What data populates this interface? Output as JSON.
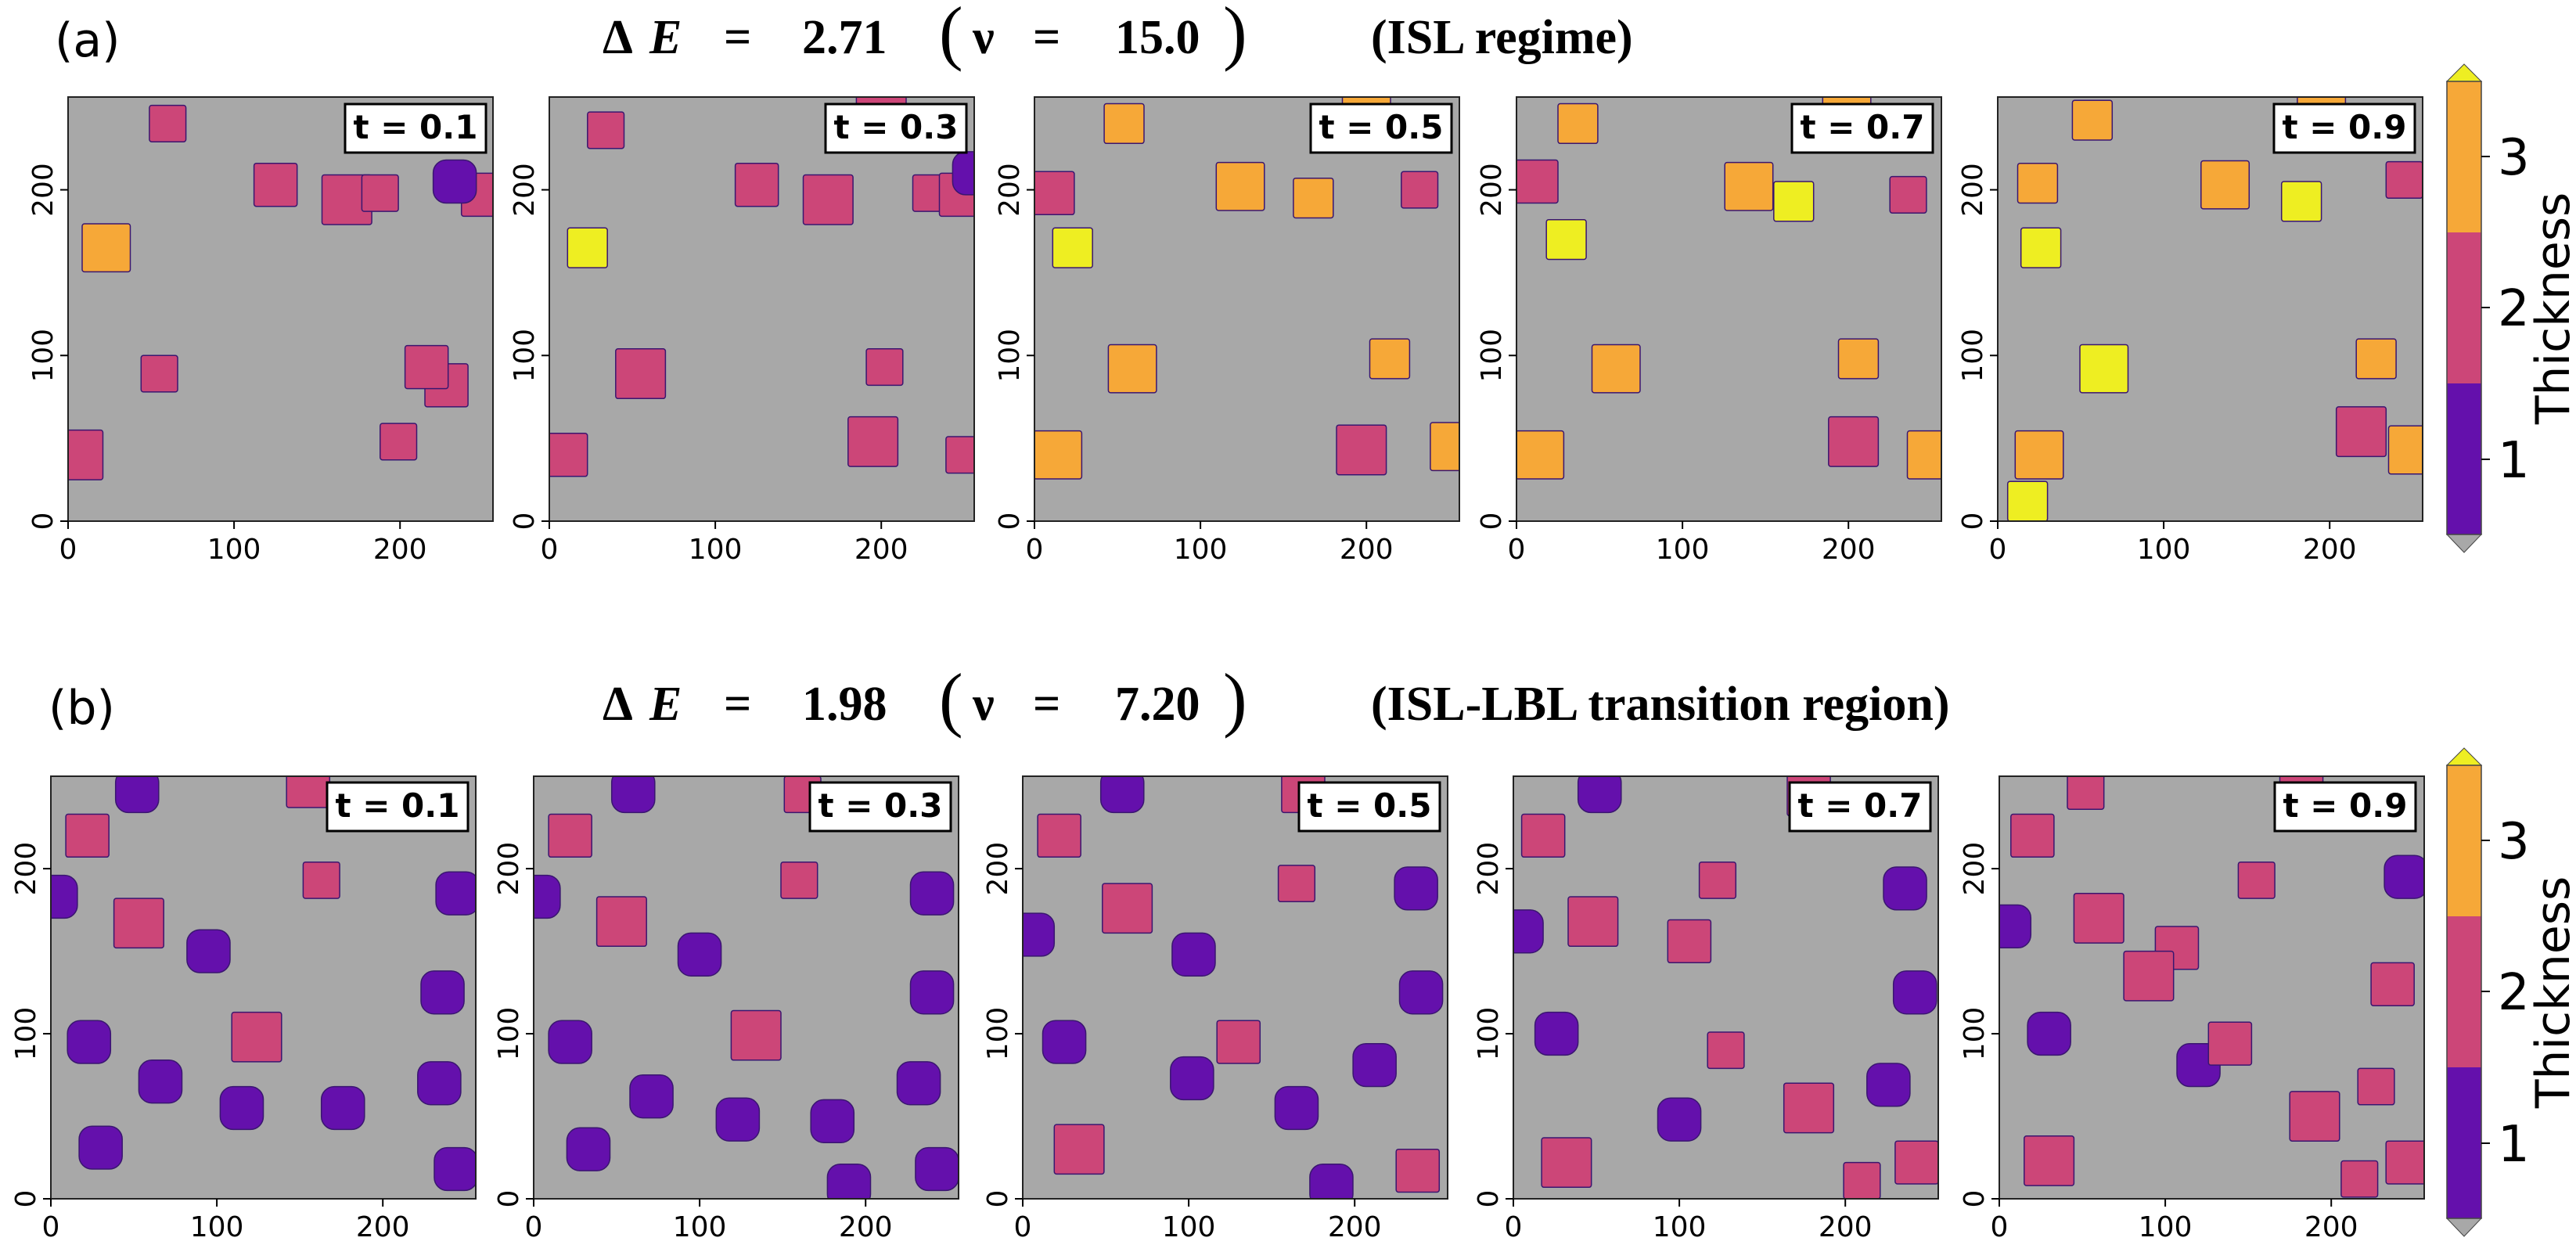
{
  "figure": {
    "colorbar_label": "Thickness",
    "colorbar_ticks": [
      "1",
      "2",
      "3"
    ],
    "colors": {
      "background": "#a8a8a8",
      "level1": "#6410ac",
      "level2": "#cc4678",
      "level3": "#f6a838",
      "level4": "#eeee22"
    },
    "axis_ticks": [
      "0",
      "100",
      "200"
    ]
  },
  "rows": [
    {
      "label": "(a)",
      "delta": "Δ",
      "E": "E",
      "eq1": "=",
      "energy": "2.71",
      "lparen": "(",
      "nu": "ν",
      "eq2": "=",
      "nu_value": "15.0",
      "rparen": ")",
      "regime": "(ISL regime)",
      "panels": [
        {
          "time_label": "t = 0.1",
          "islands": [
            [
              60,
              240,
              2
            ],
            [
              125,
              203,
              2
            ],
            [
              168,
              194,
              2
            ],
            [
              188,
              198,
              2
            ],
            [
              228,
              82,
              2
            ],
            [
              23,
              165,
              3
            ],
            [
              55,
              89,
              2
            ],
            [
              216,
              93,
              2
            ],
            [
              6,
              40,
              2
            ],
            [
              199,
              48,
              2
            ],
            [
              250,
              197,
              2
            ],
            [
              233,
              205,
              1
            ]
          ]
        },
        {
          "time_label": "t = 0.3",
          "islands": [
            [
              34,
              236,
              2
            ],
            [
              125,
              203,
              2
            ],
            [
              168,
              194,
              2
            ],
            [
              230,
              198,
              2
            ],
            [
              23,
              165,
              4
            ],
            [
              55,
              89,
              2
            ],
            [
              202,
              93,
              2
            ],
            [
              10,
              40,
              2
            ],
            [
              195,
              48,
              2
            ],
            [
              250,
              40,
              2
            ],
            [
              248,
              197,
              2
            ],
            [
              200,
              258,
              2
            ],
            [
              256,
              210,
              1
            ]
          ]
        },
        {
          "time_label": "t = 0.5",
          "islands": [
            [
              54,
              240,
              3
            ],
            [
              124,
              202,
              3
            ],
            [
              168,
              195,
              3
            ],
            [
              232,
              200,
              2
            ],
            [
              23,
              165,
              4
            ],
            [
              59,
              92,
              3
            ],
            [
              214,
              98,
              3
            ],
            [
              14,
              40,
              3
            ],
            [
              197,
              43,
              2
            ],
            [
              253,
              45,
              3
            ],
            [
              11,
              198,
              2
            ],
            [
              200,
              260,
              3
            ]
          ]
        },
        {
          "time_label": "t = 0.7",
          "islands": [
            [
              37,
              240,
              3
            ],
            [
              140,
              202,
              3
            ],
            [
              167,
              193,
              4
            ],
            [
              236,
              197,
              2
            ],
            [
              30,
              170,
              4
            ],
            [
              60,
              92,
              3
            ],
            [
              206,
              98,
              3
            ],
            [
              14,
              40,
              3
            ],
            [
              203,
              48,
              2
            ],
            [
              250,
              40,
              3
            ],
            [
              12,
              205,
              2
            ],
            [
              199,
              256,
              3
            ]
          ]
        },
        {
          "time_label": "t = 0.9",
          "islands": [
            [
              57,
              242,
              3
            ],
            [
              137,
              203,
              3
            ],
            [
              183,
              193,
              4
            ],
            [
              245,
              206,
              2
            ],
            [
              26,
              165,
              4
            ],
            [
              64,
              92,
              4
            ],
            [
              228,
              98,
              3
            ],
            [
              25,
              40,
              3
            ],
            [
              219,
              54,
              2
            ],
            [
              250,
              43,
              3
            ],
            [
              24,
              204,
              3
            ],
            [
              195,
              256,
              3
            ],
            [
              18,
              12,
              4
            ]
          ]
        }
      ]
    },
    {
      "label": "(b)",
      "delta": "Δ",
      "E": "E",
      "eq1": "=",
      "energy": "1.98",
      "lparen": "(",
      "nu": "ν",
      "eq2": "=",
      "nu_value": "7.20",
      "rparen": ")",
      "regime": "(ISL-LBL transition region)",
      "panels": [
        {
          "time_label": "t = 0.1",
          "islands": [
            [
              52,
              247,
              1
            ],
            [
              22,
              220,
              2
            ],
            [
              53,
              167,
              2
            ],
            [
              163,
              193,
              2
            ],
            [
              95,
              150,
              1
            ],
            [
              23,
              95,
              1
            ],
            [
              66,
              71,
              1
            ],
            [
              115,
              55,
              1
            ],
            [
              124,
              98,
              2
            ],
            [
              30,
              31,
              1
            ],
            [
              176,
              55,
              1
            ],
            [
              234,
              70,
              1
            ],
            [
              236,
              125,
              1
            ],
            [
              244,
              18,
              1
            ],
            [
              245,
              185,
              1
            ],
            [
              3,
              183,
              1
            ],
            [
              155,
              250,
              2
            ]
          ]
        },
        {
          "time_label": "t = 0.3",
          "islands": [
            [
              60,
              247,
              1
            ],
            [
              22,
              220,
              2
            ],
            [
              53,
              168,
              2
            ],
            [
              160,
              193,
              2
            ],
            [
              100,
              148,
              1
            ],
            [
              22,
              95,
              1
            ],
            [
              71,
              62,
              1
            ],
            [
              123,
              48,
              1
            ],
            [
              134,
              99,
              2
            ],
            [
              180,
              47,
              1
            ],
            [
              232,
              70,
              1
            ],
            [
              240,
              125,
              1
            ],
            [
              243,
              18,
              1
            ],
            [
              240,
              185,
              1
            ],
            [
              3,
              183,
              1
            ],
            [
              162,
              245,
              2
            ],
            [
              33,
              30,
              1
            ],
            [
              190,
              8,
              1
            ]
          ]
        },
        {
          "time_label": "t = 0.5",
          "islands": [
            [
              60,
              247,
              1
            ],
            [
              22,
              220,
              2
            ],
            [
              63,
              176,
              2
            ],
            [
              165,
              191,
              2
            ],
            [
              103,
              148,
              1
            ],
            [
              25,
              95,
              1
            ],
            [
              102,
              73,
              1
            ],
            [
              130,
              95,
              2
            ],
            [
              165,
              55,
              1
            ],
            [
              212,
              81,
              1
            ],
            [
              240,
              125,
              1
            ],
            [
              237,
              188,
              1
            ],
            [
              6,
              160,
              1
            ],
            [
              169,
              247,
              2
            ],
            [
              34,
              30,
              2
            ],
            [
              186,
              8,
              1
            ],
            [
              238,
              17,
              2
            ]
          ]
        },
        {
          "time_label": "t = 0.7",
          "islands": [
            [
              52,
              247,
              1
            ],
            [
              18,
              220,
              2
            ],
            [
              48,
              168,
              2
            ],
            [
              123,
              193,
              2
            ],
            [
              106,
              156,
              2
            ],
            [
              26,
              100,
              1
            ],
            [
              128,
              90,
              2
            ],
            [
              100,
              48,
              1
            ],
            [
              178,
              55,
              2
            ],
            [
              226,
              69,
              1
            ],
            [
              242,
              125,
              1
            ],
            [
              236,
              188,
              1
            ],
            [
              5,
              162,
              1
            ],
            [
              178,
              245,
              2
            ],
            [
              32,
              22,
              2
            ],
            [
              210,
              11,
              2
            ],
            [
              243,
              22,
              2
            ]
          ]
        },
        {
          "time_label": "t = 0.9",
          "islands": [
            [
              52,
              247,
              2
            ],
            [
              20,
              220,
              2
            ],
            [
              60,
              170,
              2
            ],
            [
              155,
              193,
              2
            ],
            [
              107,
              152,
              2
            ],
            [
              30,
              100,
              1
            ],
            [
              120,
              81,
              1
            ],
            [
              139,
              94,
              2
            ],
            [
              190,
              50,
              2
            ],
            [
              227,
              68,
              2
            ],
            [
              237,
              130,
              2
            ],
            [
              245,
              195,
              1
            ],
            [
              6,
              165,
              1
            ],
            [
              182,
              247,
              2
            ],
            [
              30,
              23,
              2
            ],
            [
              217,
              12,
              2
            ],
            [
              246,
              22,
              2
            ],
            [
              90,
              135,
              2
            ]
          ]
        }
      ]
    }
  ]
}
